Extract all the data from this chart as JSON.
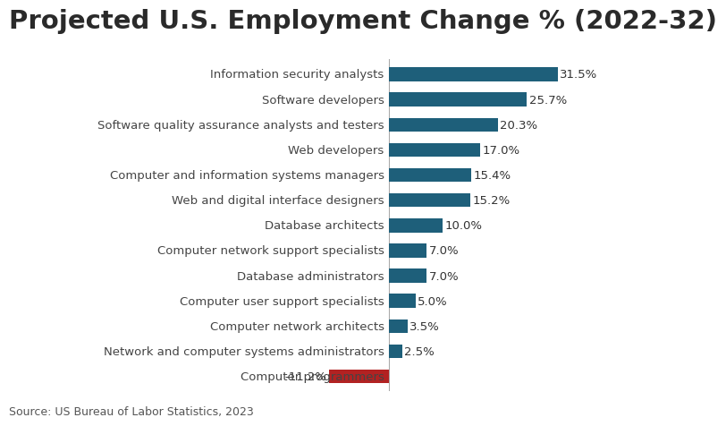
{
  "title": "Projected U.S. Employment Change % (2022-32)",
  "source": "Source: US Bureau of Labor Statistics, 2023",
  "categories": [
    "Computer programmers",
    "Network and computer systems administrators",
    "Computer network architects",
    "Computer user support specialists",
    "Database administrators",
    "Computer network support specialists",
    "Database architects",
    "Web and digital interface designers",
    "Computer and information systems managers",
    "Web developers",
    "Software quality assurance analysts and testers",
    "Software developers",
    "Information security analysts"
  ],
  "values": [
    -11.2,
    2.5,
    3.5,
    5.0,
    7.0,
    7.0,
    10.0,
    15.2,
    15.4,
    17.0,
    20.3,
    25.7,
    31.5
  ],
  "bar_colors": [
    "#b22222",
    "#1e5f7a",
    "#1e5f7a",
    "#1e5f7a",
    "#1e5f7a",
    "#1e5f7a",
    "#1e5f7a",
    "#1e5f7a",
    "#1e5f7a",
    "#1e5f7a",
    "#1e5f7a",
    "#1e5f7a",
    "#1e5f7a"
  ],
  "background_color": "#ffffff",
  "title_fontsize": 21,
  "label_fontsize": 9.5,
  "value_fontsize": 9.5,
  "source_fontsize": 9,
  "xlim": [
    -14,
    36
  ],
  "bar_height": 0.55
}
